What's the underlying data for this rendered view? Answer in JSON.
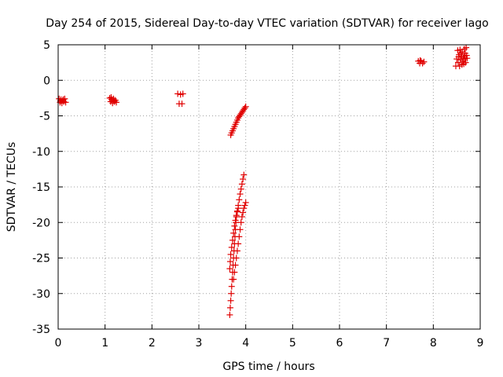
{
  "chart_data": {
    "type": "scatter",
    "title": "Day 254 of 2015, Sidereal Day-to-day VTEC variation (SDTVAR) for receiver Iago",
    "xlabel": "GPS time / hours",
    "ylabel": "SDTVAR / TECUs",
    "xlim": [
      0,
      9
    ],
    "ylim": [
      -35,
      5
    ],
    "xticks": [
      "0",
      "1",
      "2",
      "3",
      "4",
      "5",
      "6",
      "7",
      "8",
      "9"
    ],
    "yticks": [
      "5",
      "0",
      "-5",
      "-10",
      "-15",
      "-20",
      "-25",
      "-30",
      "-35"
    ],
    "grid": true,
    "marker": "+",
    "color": "#e00000",
    "series": [
      {
        "name": "SDTVAR",
        "points": [
          [
            0.02,
            -2.6
          ],
          [
            0.04,
            -3.1
          ],
          [
            0.06,
            -2.7
          ],
          [
            0.08,
            -3.2
          ],
          [
            0.1,
            -2.8
          ],
          [
            0.12,
            -3.0
          ],
          [
            0.14,
            -2.6
          ],
          [
            0.16,
            -3.1
          ],
          [
            0.05,
            -2.9
          ],
          [
            0.11,
            -2.7
          ],
          [
            1.1,
            -2.5
          ],
          [
            1.12,
            -3.0
          ],
          [
            1.14,
            -2.7
          ],
          [
            1.16,
            -3.2
          ],
          [
            1.18,
            -2.6
          ],
          [
            1.2,
            -3.0
          ],
          [
            1.22,
            -2.8
          ],
          [
            1.24,
            -3.1
          ],
          [
            1.13,
            -2.4
          ],
          [
            1.19,
            -2.9
          ],
          [
            2.55,
            -1.9
          ],
          [
            2.58,
            -3.3
          ],
          [
            2.61,
            -2.0
          ],
          [
            2.64,
            -3.3
          ],
          [
            2.66,
            -1.9
          ],
          [
            3.68,
            -7.7
          ],
          [
            3.7,
            -7.4
          ],
          [
            3.72,
            -7.1
          ],
          [
            3.74,
            -6.8
          ],
          [
            3.76,
            -6.5
          ],
          [
            3.78,
            -6.2
          ],
          [
            3.8,
            -5.9
          ],
          [
            3.82,
            -5.6
          ],
          [
            3.84,
            -5.3
          ],
          [
            3.86,
            -5.1
          ],
          [
            3.88,
            -4.9
          ],
          [
            3.9,
            -4.7
          ],
          [
            3.92,
            -4.5
          ],
          [
            3.94,
            -4.3
          ],
          [
            3.96,
            -4.1
          ],
          [
            3.98,
            -3.9
          ],
          [
            4.0,
            -3.7
          ],
          [
            3.66,
            -33.0
          ],
          [
            3.67,
            -32.0
          ],
          [
            3.68,
            -31.0
          ],
          [
            3.69,
            -30.0
          ],
          [
            3.7,
            -29.0
          ],
          [
            3.71,
            -28.0
          ],
          [
            3.72,
            -27.0
          ],
          [
            3.73,
            -26.0
          ],
          [
            3.74,
            -25.0
          ],
          [
            3.75,
            -24.0
          ],
          [
            3.76,
            -23.0
          ],
          [
            3.77,
            -22.0
          ],
          [
            3.78,
            -21.0
          ],
          [
            3.79,
            -20.0
          ],
          [
            3.8,
            -19.2
          ],
          [
            3.82,
            -18.4
          ],
          [
            3.84,
            -17.6
          ],
          [
            3.86,
            -16.8
          ],
          [
            3.88,
            -16.0
          ],
          [
            3.9,
            -15.3
          ],
          [
            3.92,
            -14.6
          ],
          [
            3.94,
            -13.9
          ],
          [
            3.96,
            -13.3
          ],
          [
            3.66,
            -26.5
          ],
          [
            3.67,
            -25.5
          ],
          [
            3.68,
            -24.5
          ],
          [
            3.7,
            -23.5
          ],
          [
            3.72,
            -22.5
          ],
          [
            3.74,
            -21.5
          ],
          [
            3.76,
            -20.5
          ],
          [
            3.78,
            -19.7
          ],
          [
            3.8,
            -19.0
          ],
          [
            3.82,
            -18.5
          ],
          [
            3.84,
            -18.0
          ],
          [
            3.74,
            -28.0
          ],
          [
            3.76,
            -27.0
          ],
          [
            3.78,
            -26.0
          ],
          [
            3.8,
            -25.0
          ],
          [
            3.82,
            -24.0
          ],
          [
            3.84,
            -23.0
          ],
          [
            3.86,
            -22.0
          ],
          [
            3.88,
            -21.0
          ],
          [
            3.9,
            -20.0
          ],
          [
            3.92,
            -19.2
          ],
          [
            3.94,
            -18.6
          ],
          [
            3.96,
            -18.0
          ],
          [
            3.98,
            -17.6
          ],
          [
            4.0,
            -17.2
          ],
          [
            7.68,
            2.7
          ],
          [
            7.71,
            2.4
          ],
          [
            7.74,
            2.7
          ],
          [
            7.77,
            2.4
          ],
          [
            7.8,
            2.6
          ],
          [
            7.72,
            2.8
          ],
          [
            8.48,
            2.0
          ],
          [
            8.5,
            3.0
          ],
          [
            8.52,
            4.2
          ],
          [
            8.53,
            2.5
          ],
          [
            8.55,
            3.6
          ],
          [
            8.56,
            2.0
          ],
          [
            8.57,
            4.3
          ],
          [
            8.58,
            2.9
          ],
          [
            8.6,
            3.4
          ],
          [
            8.61,
            2.2
          ],
          [
            8.62,
            4.0
          ],
          [
            8.63,
            2.7
          ],
          [
            8.64,
            3.2
          ],
          [
            8.65,
            2.3
          ],
          [
            8.66,
            4.4
          ],
          [
            8.67,
            3.0
          ],
          [
            8.68,
            3.8
          ],
          [
            8.69,
            2.5
          ],
          [
            8.7,
            4.6
          ],
          [
            8.71,
            3.5
          ],
          [
            8.72,
            3.1
          ],
          [
            8.54,
            3.3
          ],
          [
            8.59,
            3.8
          ],
          [
            8.66,
            3.4
          ]
        ]
      }
    ]
  }
}
